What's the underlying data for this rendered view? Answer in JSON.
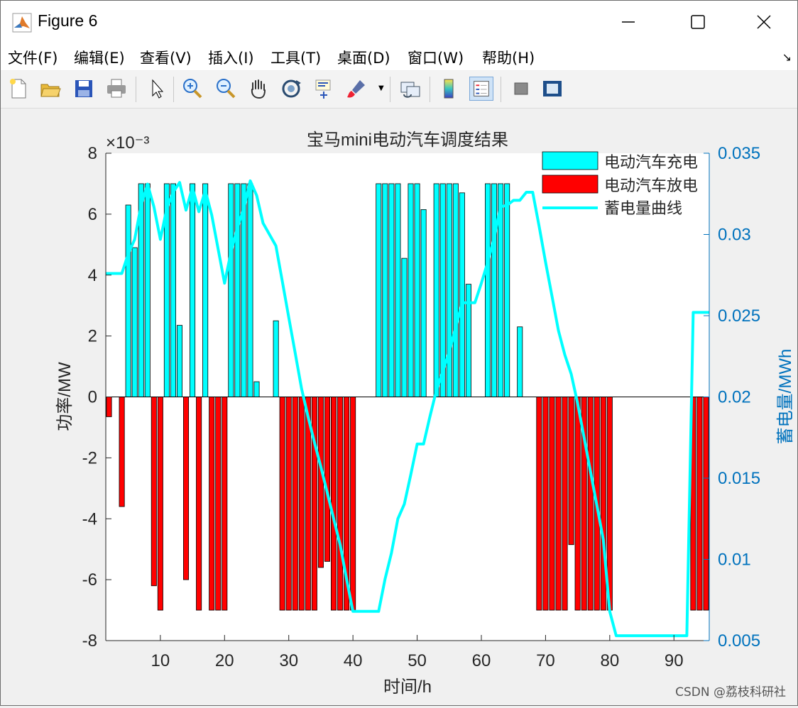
{
  "window": {
    "title": "Figure 6",
    "colors": {
      "titlebar": "#ffffff",
      "figure_bg": "#f0f0f0"
    }
  },
  "menubar": {
    "items": [
      "文件(F)",
      "编辑(E)",
      "查看(V)",
      "插入(I)",
      "工具(T)",
      "桌面(D)",
      "窗口(W)",
      "帮助(H)"
    ],
    "arrow": "↘"
  },
  "toolbar": {
    "icons": [
      "new-figure-icon",
      "open-file-icon",
      "save-icon",
      "print-icon",
      "pointer-arrow-icon",
      "zoom-in-icon",
      "zoom-out-icon",
      "pan-hand-icon",
      "rotate-3d-icon",
      "data-cursor-icon",
      "brush-icon",
      "link-plot-icon",
      "colorbar-icon",
      "legend-icon",
      "hide-plot-tools-icon",
      "show-plot-tools-icon"
    ]
  },
  "watermark": "CSDN @荔枝科研社",
  "chart_data": {
    "type": "bar",
    "title": "宝马mini电动汽车调度结果",
    "xlabel": "时间/h",
    "ylabel": "功率/MW",
    "y2label": "蓄电量/MWh",
    "xlim": [
      1.5,
      95.5
    ],
    "ylim": [
      -8,
      8
    ],
    "y2lim": [
      0.005,
      0.035
    ],
    "x_ticks": [
      "10",
      "20",
      "30",
      "40",
      "50",
      "60",
      "70",
      "80",
      "90"
    ],
    "y_ticks": [
      "-8",
      "-6",
      "-4",
      "-2",
      "0",
      "2",
      "4",
      "6",
      "8"
    ],
    "y2_ticks": [
      "0.005",
      "0.01",
      "0.015",
      "0.02",
      "0.025",
      "0.03",
      "0.035"
    ],
    "y_exponent": "×10⁻³",
    "grid": false,
    "legend_position": "top-right",
    "colors": {
      "charge": "#00ffff",
      "discharge": "#ff0000",
      "soc_line": "#00ffff",
      "right_axis": "#0072bd",
      "bar_edge": "#000000"
    },
    "series": [
      {
        "name": "电动汽车充电",
        "x": [
          5,
          6,
          7,
          8,
          11,
          12,
          13,
          15,
          17,
          21,
          22,
          23,
          24,
          25,
          28,
          44,
          45,
          46,
          47,
          48,
          49,
          50,
          51,
          53,
          54,
          55,
          56,
          57,
          58,
          61,
          62,
          63,
          64,
          66
        ],
        "values": [
          6.3,
          4.9,
          7.0,
          7.0,
          7.0,
          7.0,
          2.35,
          7.0,
          7.0,
          7.0,
          7.0,
          7.0,
          7.0,
          0.5,
          2.5,
          7.0,
          7.0,
          7.0,
          7.0,
          4.55,
          7.0,
          7.0,
          6.15,
          7.0,
          7.0,
          7.0,
          7.0,
          6.7,
          3.7,
          7.0,
          7.0,
          7.0,
          7.0,
          2.3
        ]
      },
      {
        "name": "电动汽车放电",
        "x": [
          2,
          4,
          9,
          10,
          14,
          16,
          18,
          19,
          20,
          29,
          30,
          31,
          32,
          33,
          34,
          35,
          36,
          37,
          38,
          39,
          40,
          69,
          70,
          71,
          72,
          73,
          74,
          75,
          76,
          77,
          78,
          79,
          80,
          93,
          94,
          95
        ],
        "values": [
          -0.65,
          -3.6,
          -6.2,
          -7.0,
          -6.0,
          -7.0,
          -7.0,
          -7.0,
          -7.0,
          -7.0,
          -7.0,
          -7.0,
          -7.0,
          -7.0,
          -7.0,
          -5.6,
          -5.4,
          -7.0,
          -7.0,
          -7.0,
          -7.0,
          -7.0,
          -7.0,
          -7.0,
          -7.0,
          -7.0,
          -4.85,
          -7.0,
          -7.0,
          -7.0,
          -7.0,
          -7.0,
          -7.0,
          -7.0,
          -7.0,
          -7.0
        ]
      },
      {
        "name": "蓄电量曲线",
        "axis": "right",
        "x": [
          1.5,
          4,
          5,
          6,
          7,
          8,
          9,
          10,
          11,
          12,
          13,
          14,
          15,
          16,
          17,
          18,
          20,
          21,
          22,
          23,
          24,
          25,
          26,
          28,
          29,
          30,
          31,
          32,
          33,
          34,
          35,
          36,
          37,
          38,
          39,
          40,
          41,
          44,
          45,
          46,
          47,
          48,
          49,
          50,
          51,
          52,
          53,
          54,
          55,
          56,
          57,
          58,
          59,
          60,
          61,
          62,
          63,
          64,
          65,
          66,
          67,
          68,
          69,
          70,
          71,
          72,
          73,
          74,
          75,
          76,
          77,
          78,
          79,
          80,
          81,
          90,
          91,
          92,
          93,
          94,
          95.5
        ],
        "values": [
          0.0276,
          0.0276,
          0.0288,
          0.0297,
          0.0318,
          0.0331,
          0.0317,
          0.0297,
          0.0316,
          0.0326,
          0.0332,
          0.0315,
          0.0329,
          0.0314,
          0.0327,
          0.0312,
          0.027,
          0.0289,
          0.0304,
          0.0316,
          0.0333,
          0.0324,
          0.0307,
          0.0293,
          0.0271,
          0.0249,
          0.0227,
          0.0205,
          0.0188,
          0.0172,
          0.0157,
          0.0141,
          0.0125,
          0.0109,
          0.0088,
          0.0068,
          0.0068,
          0.0068,
          0.0088,
          0.0104,
          0.0125,
          0.0134,
          0.0152,
          0.0171,
          0.0171,
          0.0188,
          0.0204,
          0.0216,
          0.0228,
          0.0243,
          0.0258,
          0.0258,
          0.0258,
          0.027,
          0.0283,
          0.0298,
          0.0317,
          0.0318,
          0.0321,
          0.0321,
          0.0326,
          0.0326,
          0.0305,
          0.0283,
          0.0262,
          0.0241,
          0.0226,
          0.0214,
          0.0196,
          0.0175,
          0.0154,
          0.0133,
          0.0112,
          0.0068,
          0.0053,
          0.0053,
          0.0053,
          0.0053,
          0.0252,
          0.0252,
          0.0252
        ]
      }
    ]
  }
}
